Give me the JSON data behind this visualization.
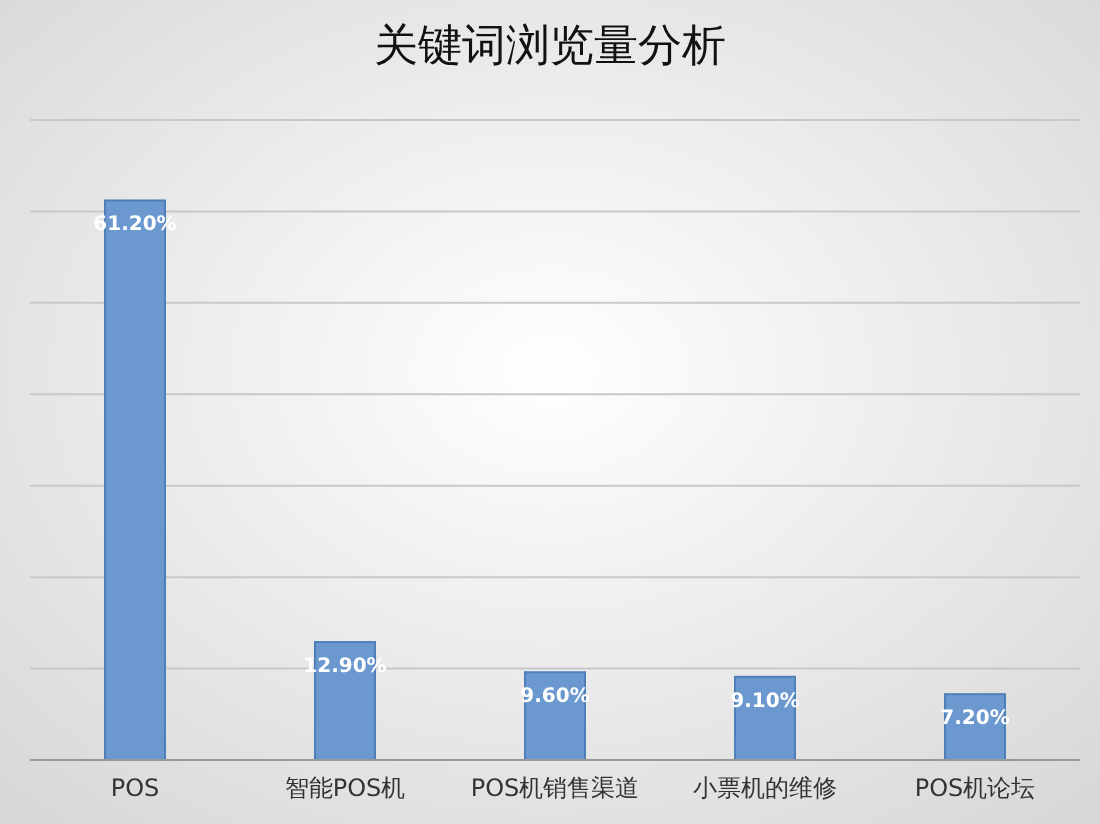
{
  "chart_data": {
    "type": "bar",
    "title": "关键词浏览量分析",
    "categories": [
      "POS",
      "智能POS机",
      "POS机销售渠道",
      "小票机的维修",
      "POS机论坛"
    ],
    "values": [
      61.2,
      12.9,
      9.6,
      9.1,
      7.2
    ],
    "value_labels": [
      "61.20%",
      "12.90%",
      "9.60%",
      "9.10%",
      "7.20%"
    ],
    "color": "#6b98cf",
    "ylim": [
      0,
      70
    ],
    "yticks": [
      {
        "value": 0,
        "label": null
      },
      {
        "value": 10,
        "label": null
      },
      {
        "value": 20,
        "label": null
      },
      {
        "value": 30,
        "label": null
      },
      {
        "value": 40,
        "label": null
      },
      {
        "value": 50,
        "label": null
      },
      {
        "value": 60,
        "label": null
      },
      {
        "value": 70,
        "label": null
      }
    ],
    "grid": "y"
  }
}
